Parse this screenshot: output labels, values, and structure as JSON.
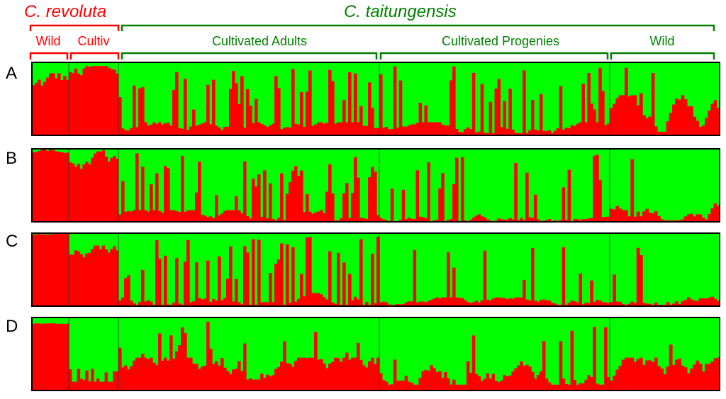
{
  "colors": {
    "red": "#ff0000",
    "green": "#00ff00",
    "dark_green": "#008000",
    "border": "#000000"
  },
  "header": {
    "species_left": "C. revoluta",
    "species_right": "C. taitungensis",
    "groups": [
      {
        "label": "Wild",
        "species": "revoluta"
      },
      {
        "label": "Cultiv",
        "species": "revoluta"
      },
      {
        "label": "Cultivated Adults",
        "species": "taitungensis"
      },
      {
        "label": "Cultivated Progenies",
        "species": "taitungensis"
      },
      {
        "label": "Wild",
        "species": "taitungensis"
      }
    ]
  },
  "chart_data": {
    "type": "bar",
    "stacked": true,
    "series_colors": [
      "red",
      "green"
    ],
    "ylim": [
      0,
      1
    ],
    "panels": [
      {
        "label": "A",
        "segments": [
          {
            "n": 13,
            "red_min": 0.45,
            "red_max": 0.85,
            "spike_rate": 0.0
          },
          {
            "n": 18,
            "red_min": 0.62,
            "red_max": 0.95,
            "spike_rate": 0.0
          },
          {
            "n": 92,
            "red_min": 0.02,
            "red_max": 0.18,
            "spike_rate": 0.33
          },
          {
            "n": 82,
            "red_min": 0.03,
            "red_max": 0.18,
            "spike_rate": 0.25
          },
          {
            "n": 37,
            "red_min": 0.05,
            "red_max": 0.55,
            "spike_rate": 0.05
          }
        ]
      },
      {
        "label": "B",
        "segments": [
          {
            "n": 13,
            "red_min": 0.92,
            "red_max": 0.99,
            "spike_rate": 0.0
          },
          {
            "n": 18,
            "red_min": 0.68,
            "red_max": 0.98,
            "spike_rate": 0.0
          },
          {
            "n": 92,
            "red_min": 0.02,
            "red_max": 0.16,
            "spike_rate": 0.32
          },
          {
            "n": 82,
            "red_min": 0.01,
            "red_max": 0.12,
            "spike_rate": 0.22
          },
          {
            "n": 37,
            "red_min": 0.02,
            "red_max": 0.3,
            "spike_rate": 0.05
          }
        ]
      },
      {
        "label": "C",
        "segments": [
          {
            "n": 13,
            "red_min": 0.97,
            "red_max": 0.99,
            "spike_rate": 0.0
          },
          {
            "n": 18,
            "red_min": 0.62,
            "red_max": 0.83,
            "spike_rate": 0.0
          },
          {
            "n": 92,
            "red_min": 0.02,
            "red_max": 0.18,
            "spike_rate": 0.3
          },
          {
            "n": 82,
            "red_min": 0.02,
            "red_max": 0.12,
            "spike_rate": 0.18
          },
          {
            "n": 37,
            "red_min": 0.02,
            "red_max": 0.15,
            "spike_rate": 0.06
          }
        ]
      },
      {
        "label": "D",
        "segments": [
          {
            "n": 13,
            "red_min": 0.9,
            "red_max": 0.92,
            "spike_rate": 0.0
          },
          {
            "n": 18,
            "red_min": 0.12,
            "red_max": 0.75,
            "spike_rate": 0.0
          },
          {
            "n": 92,
            "red_min": 0.15,
            "red_max": 0.45,
            "spike_rate": 0.2
          },
          {
            "n": 82,
            "red_min": 0.08,
            "red_max": 0.4,
            "spike_rate": 0.12
          },
          {
            "n": 37,
            "red_min": 0.05,
            "red_max": 0.45,
            "spike_rate": 0.04
          }
        ]
      }
    ]
  }
}
